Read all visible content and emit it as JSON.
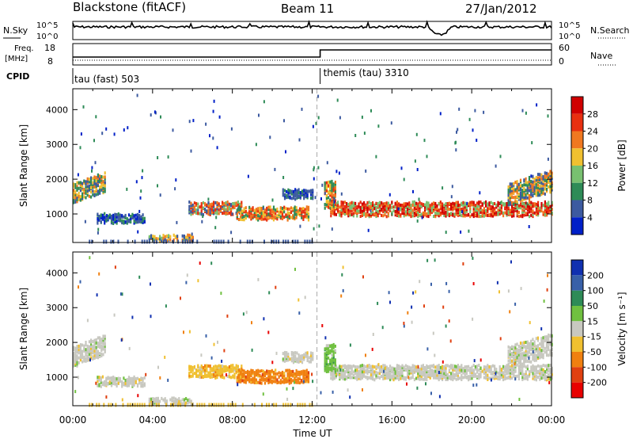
{
  "header": {
    "station": "Blackstone (fitACF)",
    "beam": "Beam 11",
    "date": "27/Jan/2012"
  },
  "top_panels": {
    "nsky_label": "N.Sky",
    "nsearch_label": "N.Search",
    "noise_ticks": [
      "10^5",
      "10^0"
    ],
    "freq_label_1": "Freq.",
    "freq_label_2": "[MHz]",
    "freq_ticks": [
      "18",
      "8"
    ],
    "nave_label": "Nave",
    "nave_ticks": [
      "60",
      "0"
    ],
    "cpid_label": "CPID",
    "cpid_first": "tau (fast) 503",
    "cpid_second": "themis (tau) 3310",
    "cpid_change_hour": 12.4
  },
  "chart_data": [
    {
      "type": "heatmap",
      "name": "Power",
      "ylabel": "Slant Range [km]",
      "ylim": [
        180,
        4600
      ],
      "yticks": [
        1000,
        2000,
        3000,
        4000
      ],
      "colorbar_label": "Power [dB]",
      "colorbar_ticks": [
        "4",
        "8",
        "12",
        "16",
        "20",
        "24",
        "28"
      ],
      "colors": [
        "#0020c8",
        "#3c5aa0",
        "#2e8b57",
        "#78c070",
        "#f0c030",
        "#f07820",
        "#e83010",
        "#d00000"
      ]
    },
    {
      "type": "heatmap",
      "name": "Velocity",
      "ylabel": "Slant Range [km]",
      "ylim": [
        180,
        4600
      ],
      "yticks": [
        1000,
        2000,
        3000,
        4000
      ],
      "colorbar_label": "Velocity [m s⁻¹]",
      "colorbar_ticks": [
        "200",
        "100",
        "50",
        "15",
        "-15",
        "-50",
        "-100",
        "-200"
      ],
      "colors": [
        "#1030b0",
        "#3860a8",
        "#2e8b57",
        "#70c040",
        "#c8c8c0",
        "#f0c030",
        "#f08010",
        "#e04010",
        "#e80000"
      ]
    }
  ],
  "xaxis": {
    "label": "Time UT",
    "ticks": [
      "00:00",
      "04:00",
      "08:00",
      "12:00",
      "16:00",
      "20:00",
      "00:00"
    ]
  }
}
